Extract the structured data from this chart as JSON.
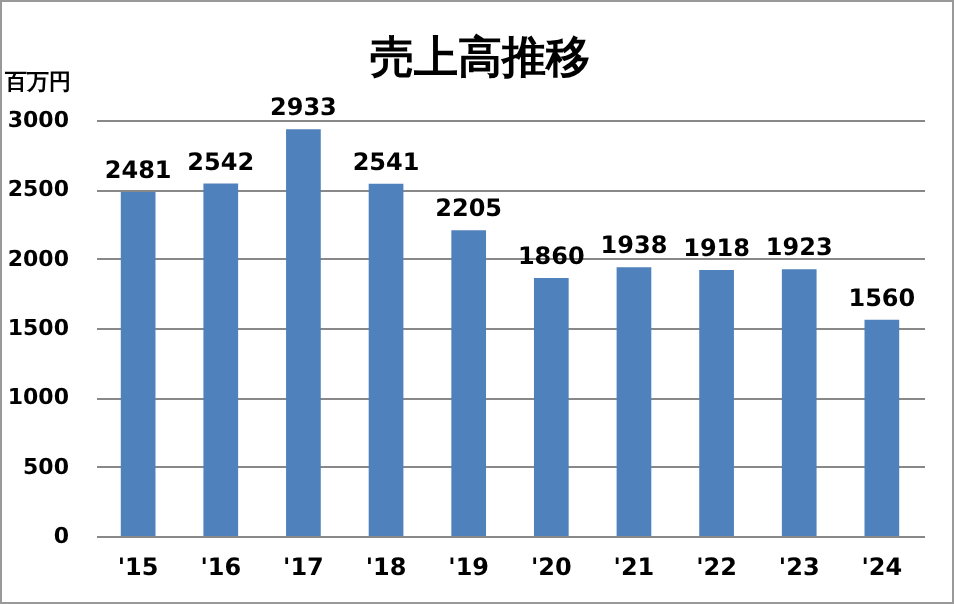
{
  "chart_data": {
    "type": "bar",
    "title": "売上高推移",
    "ylabel": "百万円",
    "categories": [
      "'15",
      "'16",
      "'17",
      "'18",
      "'19",
      "'20",
      "'21",
      "'22",
      "'23",
      "'24"
    ],
    "values": [
      2481,
      2542,
      2933,
      2541,
      2205,
      1860,
      1938,
      1918,
      1923,
      1560
    ],
    "color": "#4f81bd",
    "ylim": [
      0,
      3000
    ],
    "yticks": [
      0,
      500,
      1000,
      1500,
      2000,
      2500,
      3000
    ],
    "grid": "y",
    "data_labels": true
  }
}
